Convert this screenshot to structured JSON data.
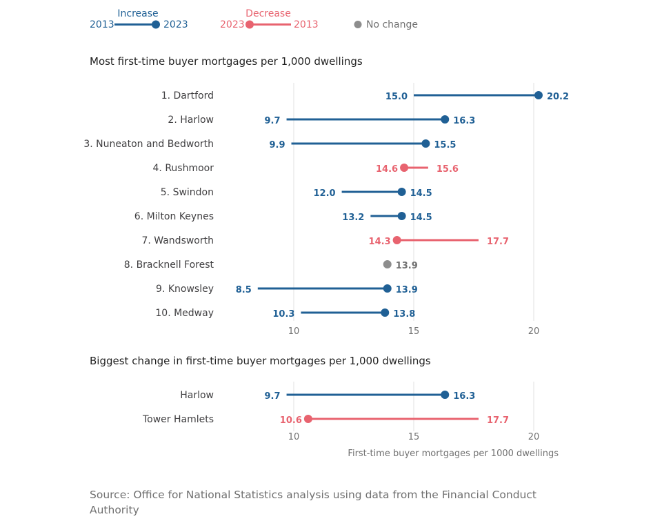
{
  "colors": {
    "increase": "#206095",
    "decrease": "#e8636f",
    "nochange": "#8d8d8d",
    "grid": "#e0e0e0"
  },
  "legend": {
    "increase": {
      "title": "Increase",
      "from": "2013",
      "to": "2023"
    },
    "decrease": {
      "title": "Decrease",
      "from": "2023",
      "to": "2013"
    },
    "nochange": {
      "label": "No change"
    }
  },
  "source": "Source: Office for National Statistics analysis using data from the Financial Conduct Authority",
  "chart_data": [
    {
      "type": "dumbbell",
      "title": "Most first-time buyer mortgages per 1,000 dwellings",
      "xlim": [
        7.8,
        21.2
      ],
      "xticks": [
        10,
        15,
        20
      ],
      "rows": [
        {
          "label": "1. Dartford",
          "y2013": 15.0,
          "y2023": 20.2,
          "change": "increase"
        },
        {
          "label": "2. Harlow",
          "y2013": 9.7,
          "y2023": 16.3,
          "change": "increase"
        },
        {
          "label": "3. Nuneaton and Bedworth",
          "y2013": 9.9,
          "y2023": 15.5,
          "change": "increase"
        },
        {
          "label": "4. Rushmoor",
          "y2013": 15.6,
          "y2023": 14.6,
          "change": "decrease"
        },
        {
          "label": "5. Swindon",
          "y2013": 12.0,
          "y2023": 14.5,
          "change": "increase"
        },
        {
          "label": "6. Milton Keynes",
          "y2013": 13.2,
          "y2023": 14.5,
          "change": "increase"
        },
        {
          "label": "7. Wandsworth",
          "y2013": 17.7,
          "y2023": 14.3,
          "change": "decrease"
        },
        {
          "label": "8. Bracknell Forest",
          "y2013": 13.9,
          "y2023": 13.9,
          "change": "none"
        },
        {
          "label": "9. Knowsley",
          "y2013": 8.5,
          "y2023": 13.9,
          "change": "increase"
        },
        {
          "label": "10. Medway",
          "y2013": 10.3,
          "y2023": 13.8,
          "change": "increase"
        }
      ]
    },
    {
      "type": "dumbbell",
      "title": "Biggest change in first-time buyer mortgages per 1,000 dwellings",
      "xlabel": "First-time buyer mortgages per 1000 dwellings",
      "xlim": [
        7.8,
        21.2
      ],
      "xticks": [
        10,
        15,
        20
      ],
      "rows": [
        {
          "label": "Harlow",
          "y2013": 9.7,
          "y2023": 16.3,
          "change": "increase"
        },
        {
          "label": "Tower Hamlets",
          "y2013": 17.7,
          "y2023": 10.6,
          "change": "decrease"
        }
      ]
    }
  ]
}
